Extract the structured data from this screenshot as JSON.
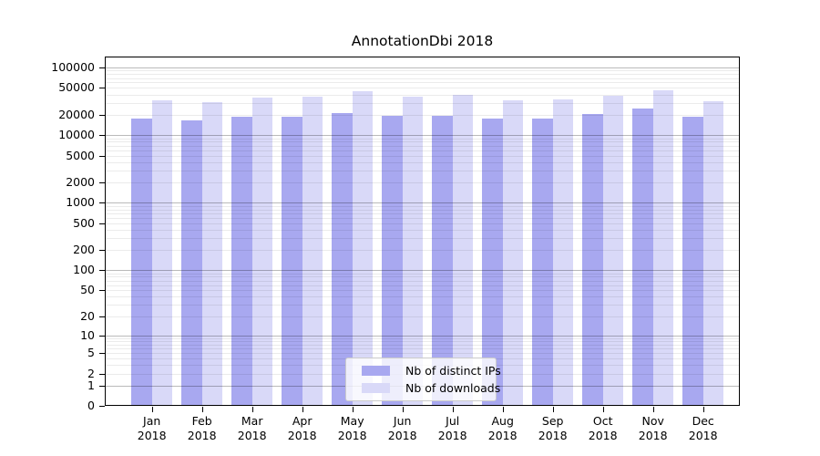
{
  "title": "AnnotationDbi 2018",
  "chart_data": {
    "type": "bar",
    "title": "AnnotationDbi 2018",
    "y_scale": "log1p (y position proportional to log10(1+value), 0 at baseline)",
    "months": [
      "Jan",
      "Feb",
      "Mar",
      "Apr",
      "May",
      "Jun",
      "Jul",
      "Aug",
      "Sep",
      "Oct",
      "Nov",
      "Dec"
    ],
    "year": "2018",
    "series": [
      {
        "name": "Nb of distinct IPs",
        "color": "#a8a8f0",
        "values": [
          17600,
          16700,
          18900,
          18900,
          21500,
          19100,
          19500,
          17600,
          17600,
          20500,
          25000,
          18700
        ]
      },
      {
        "name": "Nb of downloads",
        "color": "#d9d9f8",
        "values": [
          32700,
          30800,
          36200,
          36700,
          44400,
          37000,
          39400,
          32700,
          33400,
          38200,
          46000,
          31700
        ]
      }
    ],
    "y_ticks": [
      100000,
      50000,
      20000,
      10000,
      5000,
      2000,
      1000,
      500,
      200,
      100,
      50,
      20,
      10,
      5,
      2,
      1,
      0
    ],
    "ylim": [
      0,
      145000
    ],
    "grid": {
      "major_at": "powers of 10",
      "minor_at": "2-9 times powers of 10",
      "major_color": "rgba(0,0,0,0.27)",
      "minor_color": "rgba(0,0,0,0.08)"
    },
    "legend_position": "bottom-center inside plot",
    "xlabel": "",
    "ylabel": ""
  }
}
